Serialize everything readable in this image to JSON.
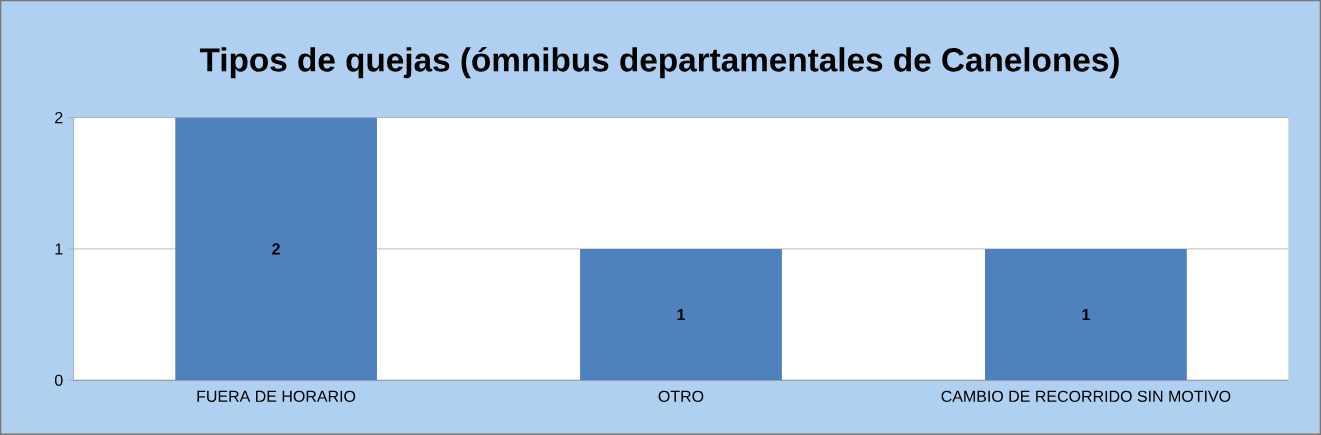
{
  "chart_data": {
    "type": "bar",
    "title": "Tipos de quejas (ómnibus departamentales de Canelones)",
    "categories": [
      "FUERA DE HORARIO",
      "OTRO",
      "CAMBIO DE RECORRIDO SIN MOTIVO"
    ],
    "values": [
      2,
      1,
      1
    ],
    "color": "#4f81bd",
    "ylim": [
      0,
      2
    ],
    "yticks": [
      0,
      1,
      2
    ],
    "grid": "y",
    "data_labels": true
  }
}
